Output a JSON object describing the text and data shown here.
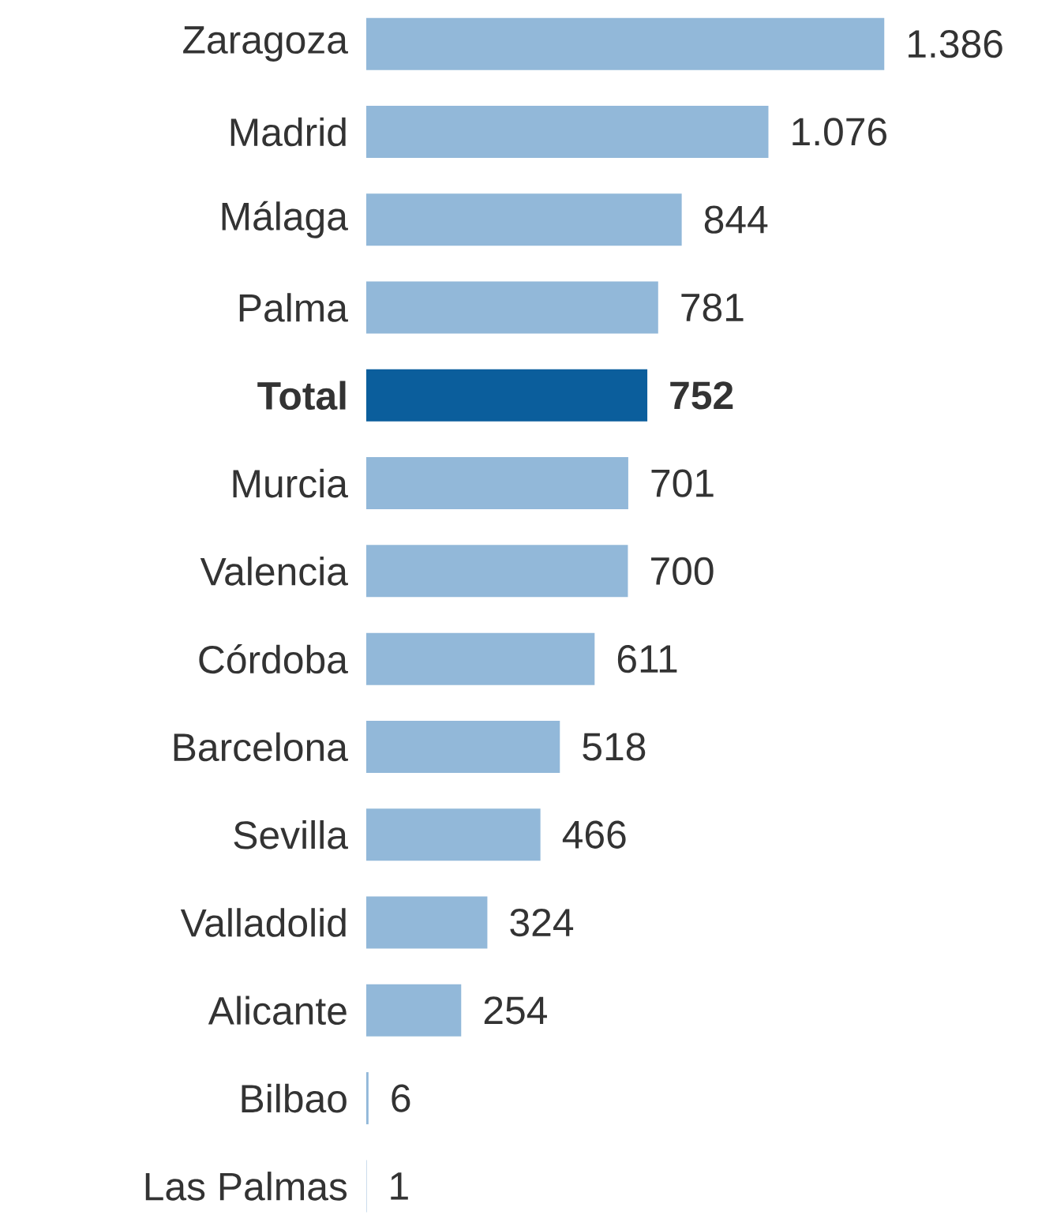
{
  "chart_data": {
    "type": "bar",
    "orientation": "horizontal",
    "categories": [
      "Zaragoza",
      "Madrid",
      "Málaga",
      "Palma",
      "Total",
      "Murcia",
      "Valencia",
      "Córdoba",
      "Barcelona",
      "Sevilla",
      "Valladolid",
      "Alicante",
      "Bilbao",
      "Las Palmas"
    ],
    "values": [
      1386,
      1076,
      844,
      781,
      752,
      701,
      700,
      611,
      518,
      466,
      324,
      254,
      6,
      1
    ],
    "value_labels": [
      "1.386",
      "1.076",
      "844",
      "781",
      "752",
      "701",
      "700",
      "611",
      "518",
      "466",
      "324",
      "254",
      "6",
      "1"
    ],
    "colors": [
      "#92b8d9",
      "#92b8d9",
      "#92b8d9",
      "#92b8d9",
      "#0b5e9c",
      "#92b8d9",
      "#92b8d9",
      "#92b8d9",
      "#92b8d9",
      "#92b8d9",
      "#92b8d9",
      "#92b8d9",
      "#92b8d9",
      "#92b8d9"
    ]
  }
}
